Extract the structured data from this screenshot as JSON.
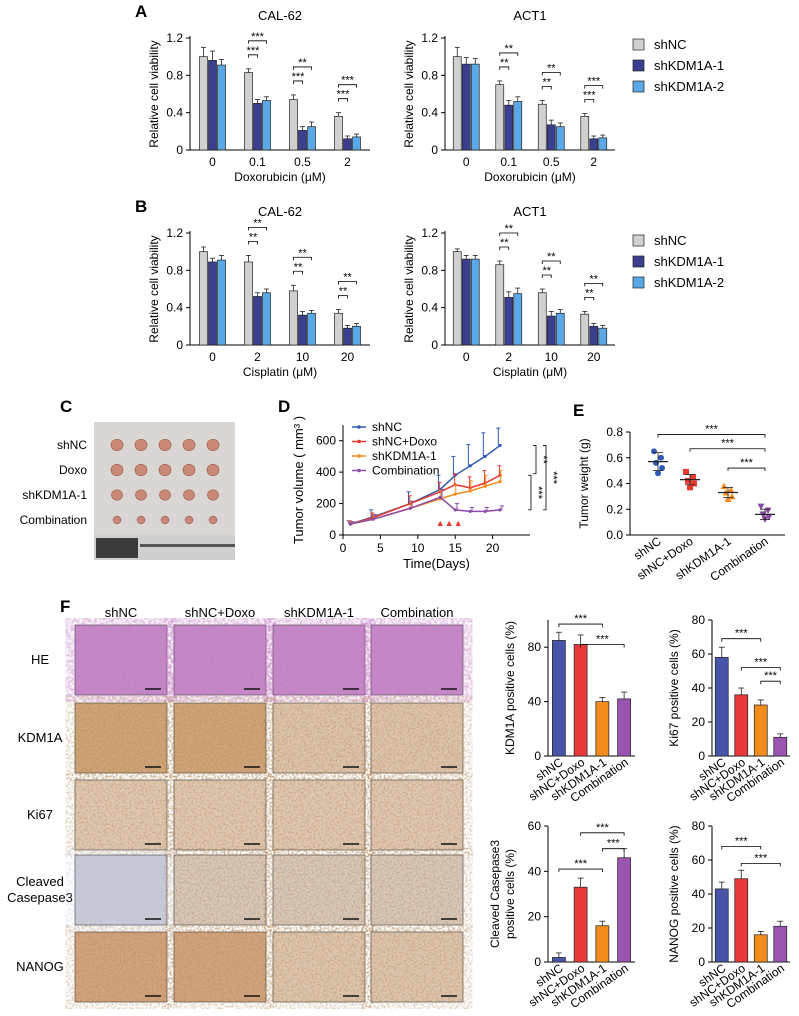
{
  "panels": {
    "A": "A",
    "B": "B",
    "C": "C",
    "D": "D",
    "E": "E",
    "F": "F"
  },
  "colors": {
    "shNC": "#d0d0d0",
    "shKDM1A1": "#3b3f8f",
    "shKDM1A2": "#5aa9e6",
    "d_shNC": "#2f59b5",
    "d_doxo": "#e8392f",
    "d_kdm": "#f28c1d",
    "d_comb": "#8e4aa8",
    "f_shNC": "#4854a8",
    "f_doxo": "#e83a3a",
    "f_kdm": "#f28c1d",
    "f_comb": "#9a55b0"
  },
  "bar_legend": [
    "shNC",
    "shKDM1A-1",
    "shKDM1A-2"
  ],
  "chart_data": [
    {
      "id": "A1",
      "type": "bar",
      "title": "CAL-62",
      "xlabel": "Doxorubicin (μM)",
      "ylabel": "Relative cell viability",
      "categories": [
        "0",
        "0.1",
        "0.5",
        "2"
      ],
      "ylim": [
        0,
        1.2
      ],
      "yticks": [
        "0",
        "0.4",
        "0.8",
        "1.2"
      ],
      "series": [
        {
          "name": "shNC",
          "values": [
            1.0,
            0.83,
            0.54,
            0.36
          ],
          "err": [
            0.1,
            0.04,
            0.05,
            0.04
          ]
        },
        {
          "name": "shKDM1A-1",
          "values": [
            0.96,
            0.5,
            0.21,
            0.12
          ],
          "err": [
            0.1,
            0.04,
            0.04,
            0.03
          ]
        },
        {
          "name": "shKDM1A-2",
          "values": [
            0.91,
            0.53,
            0.25,
            0.14
          ],
          "err": [
            0.06,
            0.04,
            0.05,
            0.03
          ]
        }
      ],
      "sig": [
        [
          "***",
          "***"
        ],
        [
          "***",
          "**"
        ],
        [
          "***",
          "***"
        ]
      ]
    },
    {
      "id": "A2",
      "type": "bar",
      "title": "ACT1",
      "xlabel": "Doxorubicin (μM)",
      "ylabel": "Relative cell viability",
      "categories": [
        "0",
        "0.1",
        "0.5",
        "2"
      ],
      "ylim": [
        0,
        1.2
      ],
      "yticks": [
        "0",
        "0.4",
        "0.8",
        "1.2"
      ],
      "series": [
        {
          "name": "shNC",
          "values": [
            1.0,
            0.7,
            0.49,
            0.36
          ],
          "err": [
            0.1,
            0.04,
            0.04,
            0.03
          ]
        },
        {
          "name": "shKDM1A-1",
          "values": [
            0.92,
            0.48,
            0.27,
            0.12
          ],
          "err": [
            0.07,
            0.05,
            0.05,
            0.03
          ]
        },
        {
          "name": "shKDM1A-2",
          "values": [
            0.92,
            0.52,
            0.25,
            0.13
          ],
          "err": [
            0.06,
            0.05,
            0.04,
            0.03
          ]
        }
      ],
      "sig": [
        [
          "**",
          "**"
        ],
        [
          "**",
          "**"
        ],
        [
          "***",
          "***"
        ]
      ]
    },
    {
      "id": "B1",
      "type": "bar",
      "title": "CAL-62",
      "xlabel": "Cisplatin (μM)",
      "ylabel": "Relative cell viability",
      "categories": [
        "0",
        "2",
        "10",
        "20"
      ],
      "ylim": [
        0,
        1.2
      ],
      "yticks": [
        "0",
        "0.4",
        "0.8",
        "1.2"
      ],
      "series": [
        {
          "name": "shNC",
          "values": [
            1.0,
            0.89,
            0.58,
            0.34
          ],
          "err": [
            0.05,
            0.07,
            0.06,
            0.04
          ]
        },
        {
          "name": "shKDM1A-1",
          "values": [
            0.89,
            0.52,
            0.32,
            0.18
          ],
          "err": [
            0.04,
            0.04,
            0.04,
            0.03
          ]
        },
        {
          "name": "shKDM1A-2",
          "values": [
            0.91,
            0.56,
            0.34,
            0.2
          ],
          "err": [
            0.05,
            0.04,
            0.03,
            0.03
          ]
        }
      ],
      "sig": [
        [
          "**",
          "**"
        ],
        [
          "**",
          "**"
        ],
        [
          "**",
          "**"
        ]
      ]
    },
    {
      "id": "B2",
      "type": "bar",
      "title": "ACT1",
      "xlabel": "Cisplatin (μM)",
      "ylabel": "Relative cell viability",
      "categories": [
        "0",
        "2",
        "10",
        "20"
      ],
      "ylim": [
        0,
        1.2
      ],
      "yticks": [
        "0",
        "0.4",
        "0.8",
        "1.2"
      ],
      "series": [
        {
          "name": "shNC",
          "values": [
            1.0,
            0.86,
            0.56,
            0.33
          ],
          "err": [
            0.03,
            0.04,
            0.04,
            0.03
          ]
        },
        {
          "name": "shKDM1A-1",
          "values": [
            0.92,
            0.51,
            0.31,
            0.2
          ],
          "err": [
            0.04,
            0.06,
            0.05,
            0.03
          ]
        },
        {
          "name": "shKDM1A-2",
          "values": [
            0.92,
            0.55,
            0.34,
            0.18
          ],
          "err": [
            0.04,
            0.06,
            0.04,
            0.03
          ]
        }
      ],
      "sig": [
        [
          "**",
          "**"
        ],
        [
          "**",
          "**"
        ],
        [
          "**",
          "**"
        ]
      ]
    },
    {
      "id": "D",
      "type": "line",
      "xlabel": "Time(Days)",
      "ylabel": "Tumor volume ( mm³ )",
      "xlim": [
        0,
        25
      ],
      "ylim": [
        0,
        700
      ],
      "xticks": [
        "0",
        "5",
        "10",
        "15",
        "20"
      ],
      "yticks": [
        "0",
        "200",
        "400",
        "600"
      ],
      "x": [
        1,
        4,
        9,
        13,
        15,
        17,
        19,
        21
      ],
      "series": [
        {
          "name": "shNC",
          "values": [
            70,
            115,
            200,
            290,
            380,
            440,
            500,
            570
          ],
          "err": [
            20,
            45,
            75,
            90,
            120,
            135,
            150,
            110
          ]
        },
        {
          "name": "shNC+Doxo",
          "values": [
            70,
            110,
            200,
            275,
            320,
            300,
            330,
            380
          ],
          "err": [
            20,
            30,
            50,
            60,
            70,
            70,
            80,
            60
          ]
        },
        {
          "name": "shKDM1A-1",
          "values": [
            70,
            100,
            170,
            230,
            260,
            280,
            310,
            340
          ],
          "err": [
            15,
            30,
            45,
            55,
            60,
            65,
            70,
            70
          ]
        },
        {
          "name": "Combination",
          "values": [
            70,
            100,
            170,
            240,
            160,
            150,
            150,
            160
          ],
          "err": [
            15,
            30,
            45,
            50,
            40,
            25,
            25,
            25
          ]
        }
      ],
      "sig": [
        "**",
        "***",
        "***"
      ],
      "markers": [
        "▲",
        "▲",
        "▲"
      ]
    },
    {
      "id": "E",
      "type": "scatter",
      "ylabel": "Tumor weight (g)",
      "ylim": [
        0,
        0.8
      ],
      "yticks": [
        "0.0",
        "0.2",
        "0.4",
        "0.6",
        "0.8"
      ],
      "categories": [
        "shNC",
        "shNC+Doxo",
        "shKDM1A-1",
        "Combination"
      ],
      "points": [
        [
          0.65,
          0.6,
          0.56,
          0.52,
          0.48
        ],
        [
          0.49,
          0.45,
          0.42,
          0.4,
          0.37
        ],
        [
          0.38,
          0.35,
          0.33,
          0.3,
          0.28
        ],
        [
          0.22,
          0.19,
          0.16,
          0.14,
          0.12
        ]
      ],
      "mean": [
        0.57,
        0.43,
        0.33,
        0.16
      ],
      "sd": [
        0.07,
        0.04,
        0.04,
        0.04
      ],
      "sig": [
        "***",
        "***",
        "***"
      ]
    },
    {
      "id": "F1",
      "type": "bar",
      "ylabel": "KDM1A positive cells (%)",
      "ylim": [
        0,
        100
      ],
      "yticks": [
        "0",
        "40",
        "80"
      ],
      "categories": [
        "shNC",
        "shNC+Doxo",
        "shKDM1A-1",
        "Combination"
      ],
      "values": [
        85,
        82,
        40,
        42
      ],
      "err": [
        6,
        7,
        3,
        5
      ],
      "sig": [
        "***",
        "***"
      ]
    },
    {
      "id": "F2",
      "type": "bar",
      "ylabel": "Ki67 positive cells (%)",
      "ylim": [
        0,
        80
      ],
      "yticks": [
        "0",
        "20",
        "40",
        "60",
        "80"
      ],
      "categories": [
        "shNC",
        "shNC+Doxo",
        "shKDM1A-1",
        "Combination"
      ],
      "values": [
        58,
        36,
        30,
        11
      ],
      "err": [
        6,
        4,
        3,
        2
      ],
      "sig": [
        "***",
        "***",
        "***"
      ]
    },
    {
      "id": "F3",
      "type": "bar",
      "ylabel": "Cleaved Casepase3 positive cells (%)",
      "ylabel_lines": [
        "Cleaved Casepase3",
        "positive cells (%)"
      ],
      "ylim": [
        0,
        60
      ],
      "yticks": [
        "0",
        "20",
        "40",
        "60"
      ],
      "categories": [
        "shNC",
        "shNC+Doxo",
        "shKDM1A-1",
        "Combination"
      ],
      "values": [
        2,
        33,
        16,
        46
      ],
      "err": [
        2,
        4,
        2,
        4
      ],
      "sig": [
        "***",
        "***",
        "***"
      ]
    },
    {
      "id": "F4",
      "type": "bar",
      "ylabel": "NANOG positive cells (%)",
      "ylim": [
        0,
        80
      ],
      "yticks": [
        "0",
        "20",
        "40",
        "60",
        "80"
      ],
      "categories": [
        "shNC",
        "shNC+Doxo",
        "shKDM1A-1",
        "Combination"
      ],
      "values": [
        43,
        49,
        16,
        21
      ],
      "err": [
        4,
        5,
        2,
        3
      ],
      "sig": [
        "***",
        "***"
      ]
    }
  ],
  "panel_c": {
    "rows": [
      "shNC",
      "Doxo",
      "shKDM1A-1",
      "Combination"
    ]
  },
  "panel_f": {
    "cols": [
      "shNC",
      "shNC+Doxo",
      "shKDM1A-1",
      "Combination"
    ],
    "rows": [
      "HE",
      "KDM1A",
      "Ki67",
      "Cleaved Casepase3",
      "NANOG"
    ],
    "row_lines": [
      [
        "HE"
      ],
      [
        "KDM1A"
      ],
      [
        "Ki67"
      ],
      [
        "Cleaved",
        "Casepase3"
      ],
      [
        "NANOG"
      ]
    ]
  }
}
